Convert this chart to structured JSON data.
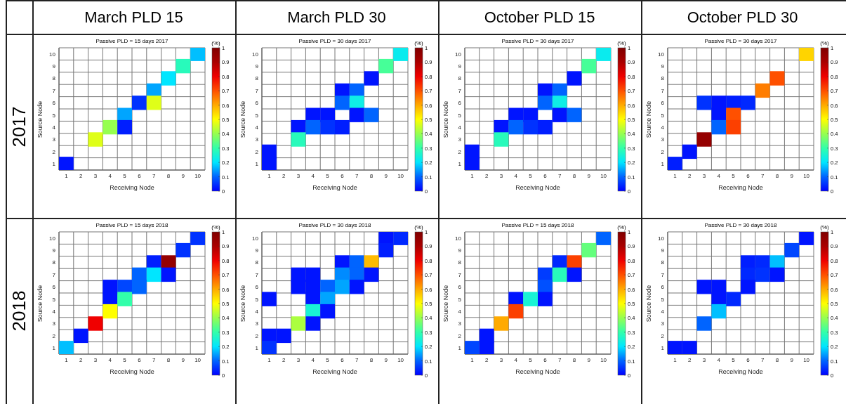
{
  "chart_data": [
    {
      "type": "heatmap",
      "title": "Passive PLD = 15 days 2017",
      "xlabel": "Receiving Node",
      "ylabel": "Source Node",
      "clabel": "(%)",
      "annotations": [
        "March PLD 15",
        "2017"
      ],
      "grid": true,
      "categories": [
        "1",
        "2",
        "3",
        "4",
        "5",
        "6",
        "7",
        "8",
        "9",
        "10"
      ],
      "y_categories": [
        "10",
        "9",
        "8",
        "7",
        "6",
        "5",
        "4",
        "3",
        "2",
        "1"
      ],
      "clim": [
        0,
        1
      ],
      "cticks": [
        0,
        0.1,
        0.2,
        0.3,
        0.4,
        0.5,
        0.6,
        0.7,
        0.8,
        0.9,
        1
      ],
      "cells": [
        [
          null,
          null,
          null,
          null,
          null,
          null,
          null,
          null,
          null,
          0.17
        ],
        [
          null,
          null,
          null,
          null,
          null,
          null,
          null,
          null,
          0.28,
          null
        ],
        [
          null,
          null,
          null,
          null,
          null,
          null,
          null,
          0.2,
          null,
          null
        ],
        [
          null,
          null,
          null,
          null,
          null,
          null,
          0.15,
          null,
          null,
          null
        ],
        [
          null,
          null,
          null,
          null,
          null,
          0.05,
          0.47,
          null,
          null,
          null
        ],
        [
          null,
          null,
          null,
          null,
          0.15,
          null,
          null,
          null,
          null,
          null
        ],
        [
          null,
          null,
          null,
          0.4,
          0.03,
          null,
          null,
          null,
          null,
          null
        ],
        [
          null,
          null,
          0.47,
          null,
          null,
          null,
          null,
          null,
          null,
          null
        ],
        [
          null,
          null,
          null,
          null,
          null,
          null,
          null,
          null,
          null,
          null
        ],
        [
          0.02,
          null,
          null,
          null,
          null,
          null,
          null,
          null,
          null,
          null
        ]
      ]
    },
    {
      "type": "heatmap",
      "title": "Passive PLD = 30 days 2017",
      "xlabel": "Receiving Node",
      "ylabel": "Source Node",
      "clabel": "(%)",
      "annotations": [
        "March PLD 30"
      ],
      "grid": true,
      "categories": [
        "1",
        "2",
        "3",
        "4",
        "5",
        "6",
        "7",
        "8",
        "9",
        "10"
      ],
      "y_categories": [
        "10",
        "9",
        "8",
        "7",
        "6",
        "5",
        "4",
        "3",
        "2",
        "1"
      ],
      "clim": [
        0,
        1
      ],
      "cticks": [
        0,
        0.1,
        0.2,
        0.3,
        0.4,
        0.5,
        0.6,
        0.7,
        0.8,
        0.9,
        1
      ],
      "cells": [
        [
          null,
          null,
          null,
          null,
          null,
          null,
          null,
          null,
          null,
          0.22
        ],
        [
          null,
          null,
          null,
          null,
          null,
          null,
          null,
          null,
          0.32,
          null
        ],
        [
          null,
          null,
          null,
          null,
          null,
          null,
          null,
          0.02,
          null,
          null
        ],
        [
          null,
          null,
          null,
          null,
          null,
          0.02,
          0.1,
          null,
          null,
          null
        ],
        [
          null,
          null,
          null,
          null,
          null,
          0.1,
          0.23,
          null,
          null,
          null
        ],
        [
          null,
          null,
          null,
          0.02,
          0.02,
          null,
          0.02,
          0.1,
          null,
          null
        ],
        [
          null,
          null,
          0.02,
          0.1,
          0.05,
          0.03,
          null,
          null,
          null,
          null
        ],
        [
          null,
          null,
          0.28,
          null,
          null,
          null,
          null,
          null,
          null,
          null
        ],
        [
          0.02,
          null,
          null,
          null,
          null,
          null,
          null,
          null,
          null,
          null
        ],
        [
          0.02,
          null,
          null,
          null,
          null,
          null,
          null,
          null,
          null,
          null
        ]
      ]
    },
    {
      "type": "heatmap",
      "title": "Passive PLD = 30 days 2017",
      "xlabel": "Receiving Node",
      "ylabel": "Source Node",
      "clabel": "(%)",
      "annotations": [
        "October PLD 15"
      ],
      "grid": true,
      "categories": [
        "1",
        "2",
        "3",
        "4",
        "5",
        "6",
        "7",
        "8",
        "9",
        "10"
      ],
      "y_categories": [
        "10",
        "9",
        "8",
        "7",
        "6",
        "5",
        "4",
        "3",
        "2",
        "1"
      ],
      "clim": [
        0,
        1
      ],
      "cticks": [
        0,
        0.1,
        0.2,
        0.3,
        0.4,
        0.5,
        0.6,
        0.7,
        0.8,
        0.9,
        1
      ],
      "cells": [
        [
          null,
          null,
          null,
          null,
          null,
          null,
          null,
          null,
          null,
          0.22
        ],
        [
          null,
          null,
          null,
          null,
          null,
          null,
          null,
          null,
          0.32,
          null
        ],
        [
          null,
          null,
          null,
          null,
          null,
          null,
          null,
          0.02,
          null,
          null
        ],
        [
          null,
          null,
          null,
          null,
          null,
          0.02,
          0.1,
          null,
          null,
          null
        ],
        [
          null,
          null,
          null,
          null,
          null,
          0.1,
          0.23,
          null,
          null,
          null
        ],
        [
          null,
          null,
          null,
          0.02,
          0.02,
          null,
          0.02,
          0.1,
          null,
          null
        ],
        [
          null,
          null,
          0.02,
          0.1,
          0.05,
          0.03,
          null,
          null,
          null,
          null
        ],
        [
          null,
          null,
          0.28,
          null,
          null,
          null,
          null,
          null,
          null,
          null
        ],
        [
          0.02,
          null,
          null,
          null,
          null,
          null,
          null,
          null,
          null,
          null
        ],
        [
          0.02,
          null,
          null,
          null,
          null,
          null,
          null,
          null,
          null,
          null
        ]
      ]
    },
    {
      "type": "heatmap",
      "title": "Passive PLD = 30 days 2017",
      "xlabel": "Receiving Node",
      "ylabel": "Source Node",
      "clabel": "(%)",
      "annotations": [
        "October PLD 30"
      ],
      "grid": true,
      "categories": [
        "1",
        "2",
        "3",
        "4",
        "5",
        "6",
        "7",
        "8",
        "9",
        "10"
      ],
      "y_categories": [
        "10",
        "9",
        "8",
        "7",
        "6",
        "5",
        "4",
        "3",
        "2",
        "1"
      ],
      "clim": [
        0,
        1
      ],
      "cticks": [
        0,
        0.1,
        0.2,
        0.3,
        0.4,
        0.5,
        0.6,
        0.7,
        0.8,
        0.9,
        1
      ],
      "cells": [
        [
          null,
          null,
          null,
          null,
          null,
          null,
          null,
          null,
          null,
          0.55
        ],
        [
          null,
          null,
          null,
          null,
          null,
          null,
          null,
          null,
          null,
          null
        ],
        [
          null,
          null,
          null,
          null,
          null,
          null,
          null,
          0.7,
          null,
          null
        ],
        [
          null,
          null,
          null,
          null,
          null,
          null,
          0.65,
          null,
          null,
          null
        ],
        [
          null,
          null,
          0.05,
          0.02,
          0.03,
          0.04,
          null,
          null,
          null,
          null
        ],
        [
          null,
          null,
          null,
          0.02,
          0.7,
          null,
          null,
          null,
          null,
          null
        ],
        [
          null,
          null,
          null,
          0.1,
          0.72,
          null,
          null,
          null,
          null,
          null
        ],
        [
          null,
          null,
          0.95,
          null,
          null,
          null,
          null,
          null,
          null,
          null
        ],
        [
          null,
          0.02,
          null,
          null,
          null,
          null,
          null,
          null,
          null,
          null
        ],
        [
          0.03,
          null,
          null,
          null,
          null,
          null,
          null,
          null,
          null,
          null
        ]
      ]
    },
    {
      "type": "heatmap",
      "title": "Passive PLD = 15 days 2018",
      "xlabel": "Receiving Node",
      "ylabel": "Source Node",
      "clabel": "(%)",
      "annotations": [
        "2018"
      ],
      "grid": true,
      "categories": [
        "1",
        "2",
        "3",
        "4",
        "5",
        "6",
        "7",
        "8",
        "9",
        "10"
      ],
      "y_categories": [
        "10",
        "9",
        "8",
        "7",
        "6",
        "5",
        "4",
        "3",
        "2",
        "1"
      ],
      "clim": [
        0,
        1
      ],
      "cticks": [
        0,
        0.1,
        0.2,
        0.3,
        0.4,
        0.5,
        0.6,
        0.7,
        0.8,
        0.9,
        1
      ],
      "cells": [
        [
          null,
          null,
          null,
          null,
          null,
          null,
          null,
          null,
          null,
          0.05
        ],
        [
          null,
          null,
          null,
          null,
          null,
          null,
          null,
          null,
          0.05,
          null
        ],
        [
          null,
          null,
          null,
          null,
          null,
          null,
          0.03,
          0.95,
          null,
          null
        ],
        [
          null,
          null,
          null,
          null,
          null,
          0.1,
          0.2,
          0.02,
          null,
          null
        ],
        [
          null,
          null,
          null,
          0.02,
          0.07,
          0.1,
          null,
          null,
          null,
          null
        ],
        [
          null,
          null,
          null,
          0.02,
          0.3,
          null,
          null,
          null,
          null,
          null
        ],
        [
          null,
          null,
          null,
          0.5,
          null,
          null,
          null,
          null,
          null,
          null
        ],
        [
          null,
          null,
          0.8,
          null,
          null,
          null,
          null,
          null,
          null,
          null
        ],
        [
          null,
          0.02,
          null,
          null,
          null,
          null,
          null,
          null,
          null,
          null
        ],
        [
          0.17,
          null,
          null,
          null,
          null,
          null,
          null,
          null,
          null,
          null
        ]
      ]
    },
    {
      "type": "heatmap",
      "title": "Passive PLD = 30 days 2018",
      "xlabel": "Receiving Node",
      "ylabel": "Source Node",
      "clabel": "(%)",
      "grid": true,
      "categories": [
        "1",
        "2",
        "3",
        "4",
        "5",
        "6",
        "7",
        "8",
        "9",
        "10"
      ],
      "y_categories": [
        "10",
        "9",
        "8",
        "7",
        "6",
        "5",
        "4",
        "3",
        "2",
        "1"
      ],
      "clim": [
        0,
        1
      ],
      "cticks": [
        0,
        0.1,
        0.2,
        0.3,
        0.4,
        0.5,
        0.6,
        0.7,
        0.8,
        0.9,
        1
      ],
      "cells": [
        [
          null,
          null,
          null,
          null,
          null,
          null,
          null,
          null,
          0.02,
          0.04
        ],
        [
          null,
          null,
          null,
          null,
          null,
          null,
          null,
          null,
          0.03,
          null
        ],
        [
          null,
          null,
          null,
          null,
          null,
          0.02,
          0.1,
          0.58,
          null,
          null
        ],
        [
          null,
          null,
          0.02,
          0.02,
          null,
          0.13,
          0.1,
          0.02,
          null,
          null
        ],
        [
          null,
          null,
          0.02,
          0.02,
          0.1,
          0.15,
          0.02,
          null,
          null,
          null
        ],
        [
          0.02,
          null,
          null,
          0.02,
          0.15,
          null,
          null,
          null,
          null,
          null
        ],
        [
          null,
          null,
          null,
          0.25,
          0.02,
          null,
          null,
          null,
          null,
          null
        ],
        [
          null,
          null,
          0.42,
          0.02,
          null,
          null,
          null,
          null,
          null,
          null
        ],
        [
          0.02,
          0.02,
          null,
          null,
          null,
          null,
          null,
          null,
          null,
          null
        ],
        [
          0.05,
          null,
          null,
          null,
          null,
          null,
          null,
          null,
          null,
          null
        ]
      ]
    },
    {
      "type": "heatmap",
      "title": "Passive PLD = 15 days 2018",
      "xlabel": "Receiving Node",
      "ylabel": "Source Node",
      "clabel": "(%)",
      "grid": true,
      "categories": [
        "1",
        "2",
        "3",
        "4",
        "5",
        "6",
        "7",
        "8",
        "9",
        "10"
      ],
      "y_categories": [
        "10",
        "9",
        "8",
        "7",
        "6",
        "5",
        "4",
        "3",
        "2",
        "1"
      ],
      "clim": [
        0,
        1
      ],
      "cticks": [
        0,
        0.1,
        0.2,
        0.3,
        0.4,
        0.5,
        0.6,
        0.7,
        0.8,
        0.9,
        1
      ],
      "cells": [
        [
          null,
          null,
          null,
          null,
          null,
          null,
          null,
          null,
          null,
          0.1
        ],
        [
          null,
          null,
          null,
          null,
          null,
          null,
          null,
          null,
          0.35,
          null
        ],
        [
          null,
          null,
          null,
          null,
          null,
          null,
          0.04,
          0.72,
          null,
          null
        ],
        [
          null,
          null,
          null,
          null,
          null,
          0.06,
          0.28,
          0.02,
          null,
          null
        ],
        [
          null,
          null,
          null,
          null,
          null,
          0.08,
          null,
          null,
          null,
          null
        ],
        [
          null,
          null,
          null,
          0.02,
          0.25,
          0.02,
          null,
          null,
          null,
          null
        ],
        [
          null,
          null,
          null,
          0.72,
          null,
          null,
          null,
          null,
          null,
          null
        ],
        [
          null,
          null,
          0.6,
          null,
          null,
          null,
          null,
          null,
          null,
          null
        ],
        [
          null,
          0.02,
          null,
          null,
          null,
          null,
          null,
          null,
          null,
          null
        ],
        [
          0.07,
          0.02,
          null,
          null,
          null,
          null,
          null,
          null,
          null,
          null
        ]
      ]
    },
    {
      "type": "heatmap",
      "title": "Passive PLD = 30 days 2018",
      "xlabel": "Receiving Node",
      "ylabel": "Source Node",
      "clabel": "(%)",
      "grid": true,
      "categories": [
        "1",
        "2",
        "3",
        "4",
        "5",
        "6",
        "7",
        "8",
        "9",
        "10"
      ],
      "y_categories": [
        "10",
        "9",
        "8",
        "7",
        "6",
        "5",
        "4",
        "3",
        "2",
        "1"
      ],
      "clim": [
        0,
        1
      ],
      "cticks": [
        0,
        0.1,
        0.2,
        0.3,
        0.4,
        0.5,
        0.6,
        0.7,
        0.8,
        0.9,
        1
      ],
      "cells": [
        [
          null,
          null,
          null,
          null,
          null,
          null,
          null,
          null,
          null,
          0.02
        ],
        [
          null,
          null,
          null,
          null,
          null,
          null,
          null,
          null,
          0.07,
          null
        ],
        [
          null,
          null,
          null,
          null,
          null,
          0.03,
          0.04,
          0.17,
          null,
          null
        ],
        [
          null,
          null,
          null,
          null,
          null,
          0.04,
          0.05,
          0.02,
          null,
          null
        ],
        [
          null,
          null,
          0.02,
          0.02,
          null,
          0.02,
          null,
          null,
          null,
          null
        ],
        [
          null,
          null,
          null,
          0.02,
          0.04,
          null,
          null,
          null,
          null,
          null
        ],
        [
          null,
          null,
          null,
          0.17,
          null,
          null,
          null,
          null,
          null,
          null
        ],
        [
          null,
          null,
          0.1,
          null,
          null,
          null,
          null,
          null,
          null,
          null
        ],
        [
          null,
          null,
          null,
          null,
          null,
          null,
          null,
          null,
          null,
          null
        ],
        [
          0.02,
          0.02,
          null,
          null,
          null,
          null,
          null,
          null,
          null,
          null
        ]
      ]
    }
  ]
}
